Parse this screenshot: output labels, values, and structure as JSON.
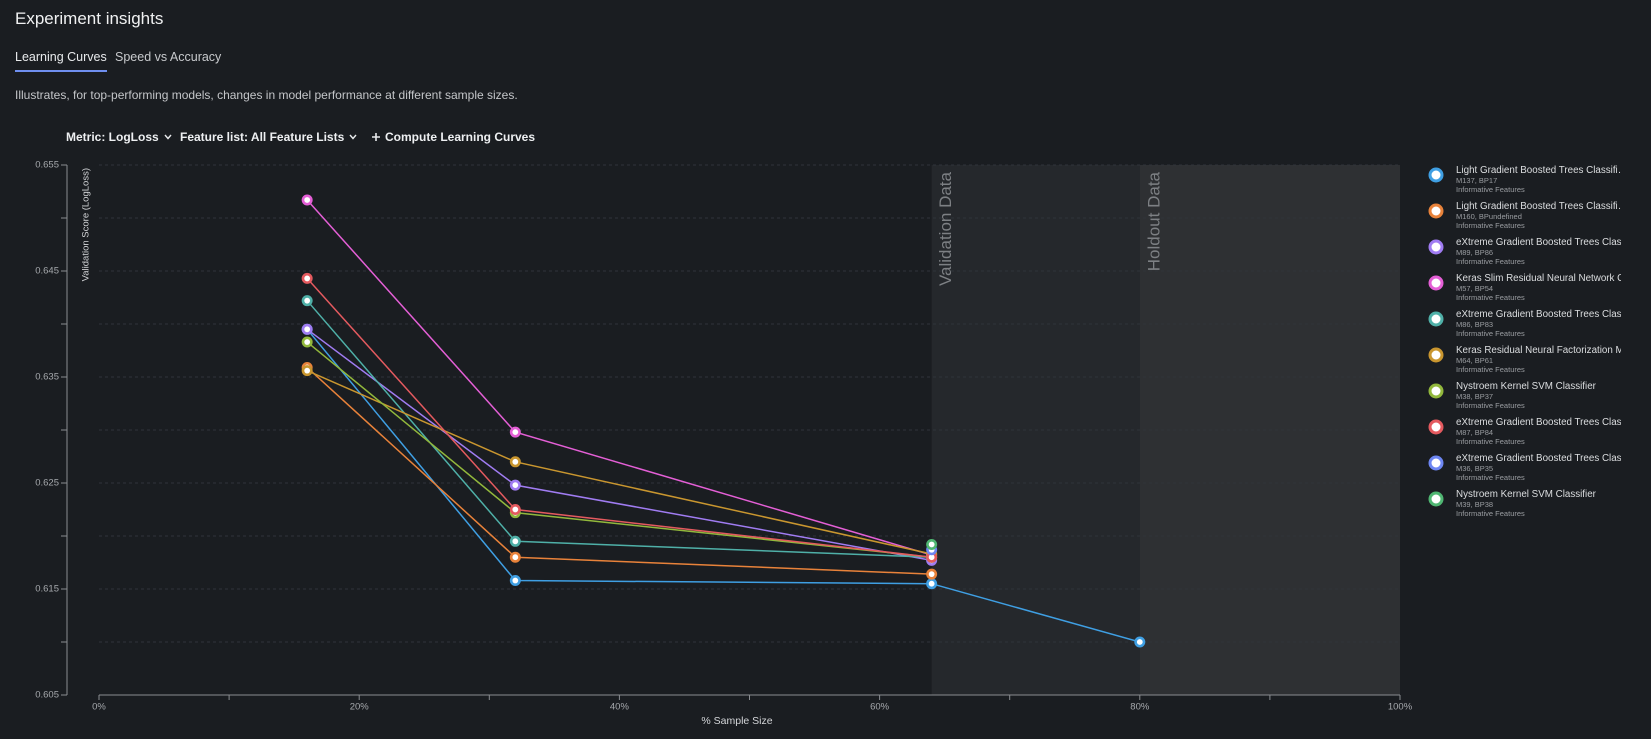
{
  "header": {
    "title": "Experiment insights",
    "tabs": [
      "Learning Curves",
      "Speed vs Accuracy"
    ],
    "description": "Illustrates, for top-performing models, changes in model performance at different sample sizes.",
    "controls": [
      "Metric: LogLoss",
      "Feature list: All Feature Lists",
      "Compute Learning Curves"
    ]
  },
  "chart_data": {
    "type": "line",
    "x_label": "% Sample Size",
    "y_label": "Validation Score (LogLoss)",
    "x": [
      16,
      32,
      64,
      80
    ],
    "xlim": [
      0,
      100
    ],
    "xticks": [
      {
        "value": 0,
        "label": "0%"
      },
      {
        "value": 20,
        "label": "20%"
      },
      {
        "value": 40,
        "label": "40%"
      },
      {
        "value": 60,
        "label": "60%"
      },
      {
        "value": 80,
        "label": "80%"
      },
      {
        "value": 100,
        "label": "100%"
      }
    ],
    "xminor_ticks": [
      10,
      30,
      50,
      70,
      90
    ],
    "ylim": [
      0.605,
      0.655
    ],
    "yticks": [
      0.605,
      0.615,
      0.625,
      0.635,
      0.645,
      0.655
    ],
    "yminor_ticks": [
      0.61,
      0.62,
      0.63,
      0.64,
      0.65
    ],
    "grid": true,
    "regions": [
      {
        "label": "Validation Data",
        "from": 64,
        "to": 80,
        "color": "#25282c"
      },
      {
        "label": "Holdout Data",
        "from": 80,
        "to": 100,
        "color": "#2e3033"
      }
    ],
    "series": [
      {
        "name": "Light Gradient Boosted Trees Classifi…",
        "model_id": "M137, BP17",
        "feature_list": "Informative Features",
        "color": "#3f9fe3",
        "values": [
          0.6395,
          0.6158,
          0.6155,
          0.61
        ]
      },
      {
        "name": "Light Gradient Boosted Trees Classifi…",
        "model_id": "M160, BPundefined",
        "feature_list": "Informative Features",
        "color": "#e8823a",
        "values": [
          0.6359,
          0.618,
          0.6164,
          null
        ]
      },
      {
        "name": "eXtreme Gradient Boosted Trees Clas",
        "model_id": "M89, BP86",
        "feature_list": "Informative Features",
        "color": "#a07cf2",
        "values": [
          0.6395,
          0.6248,
          0.6177,
          null
        ]
      },
      {
        "name": "Keras Slim Residual Neural Network C",
        "model_id": "M57, BP54",
        "feature_list": "Informative Features",
        "color": "#e45fd6",
        "values": [
          0.6517,
          0.6298,
          0.6182,
          null
        ]
      },
      {
        "name": "eXtreme Gradient Boosted Trees Clas",
        "model_id": "M86, BP83",
        "feature_list": "Informative Features",
        "color": "#4fb0a8",
        "values": [
          0.6422,
          0.6195,
          0.618,
          null
        ]
      },
      {
        "name": "Keras Residual Neural Factorization M",
        "model_id": "M64, BP61",
        "feature_list": "Informative Features",
        "color": "#c9962f",
        "values": [
          0.6356,
          0.627,
          0.6183,
          null
        ]
      },
      {
        "name": "Nystroem Kernel SVM Classifier",
        "model_id": "M38, BP37",
        "feature_list": "Informative Features",
        "color": "#92b83c",
        "values": [
          0.6383,
          0.6222,
          0.618,
          null
        ]
      },
      {
        "name": "eXtreme Gradient Boosted Trees Clas",
        "model_id": "M87, BP84",
        "feature_list": "Informative Features",
        "color": "#e45a5f",
        "values": [
          0.6443,
          0.6225,
          0.618,
          null
        ]
      },
      {
        "name": "eXtreme Gradient Boosted Trees Clas",
        "model_id": "M36, BP35",
        "feature_list": "Informative Features",
        "color": "#6d86f2",
        "values": [
          null,
          null,
          0.6187,
          null
        ]
      },
      {
        "name": "Nystroem Kernel SVM Classifier",
        "model_id": "M39, BP38",
        "feature_list": "Informative Features",
        "color": "#4fb672",
        "values": [
          null,
          null,
          0.6192,
          null
        ]
      }
    ]
  }
}
